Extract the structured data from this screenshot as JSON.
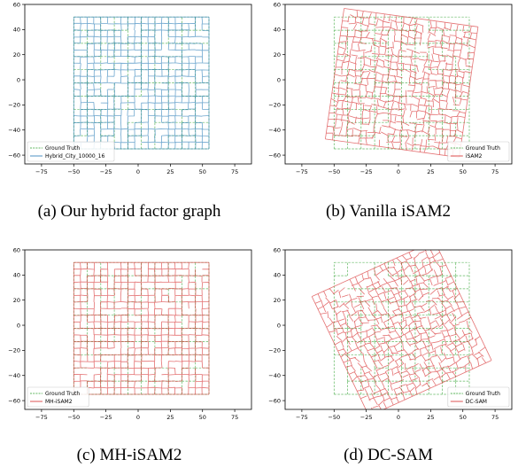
{
  "colors": {
    "ground_truth": "#2ca02c",
    "hybrid": "#1f77b4",
    "estimate": "#d62728"
  },
  "captions": [
    "(a) Our hybrid factor graph",
    "(b) Vanilla iSAM2",
    "(c) MH-iSAM2",
    "(d) DC-SAM"
  ],
  "chart_data": [
    {
      "type": "line",
      "xlim": [
        -88,
        88
      ],
      "ylim": [
        -67,
        60
      ],
      "xticks": [
        -75,
        -50,
        -25,
        0,
        25,
        50,
        75
      ],
      "yticks": [
        -60,
        -40,
        -20,
        0,
        20,
        40,
        60
      ],
      "legend": "bottom-left",
      "series": [
        {
          "name": "Ground Truth",
          "color": "#2ca02c",
          "style": "dashed",
          "grid_extent": [
            -50,
            55,
            -55,
            50
          ]
        },
        {
          "name": "Hybrid_City_10000_16",
          "color": "#1f77b4",
          "style": "solid",
          "grid_extent": [
            -50,
            55,
            -55,
            50
          ]
        }
      ]
    },
    {
      "type": "line",
      "xlim": [
        -88,
        88
      ],
      "ylim": [
        -67,
        60
      ],
      "xticks": [
        -75,
        -50,
        -25,
        0,
        25,
        50,
        75
      ],
      "yticks": [
        -60,
        -40,
        -20,
        0,
        20,
        40,
        60
      ],
      "legend": "bottom-right",
      "series": [
        {
          "name": "Ground Truth",
          "color": "#2ca02c",
          "style": "dashed",
          "grid_extent": [
            -50,
            55,
            -55,
            50
          ]
        },
        {
          "name": "iSAM2",
          "color": "#d62728",
          "style": "solid",
          "grid_extent": [
            -50,
            55,
            -55,
            50
          ],
          "rotation_deg": -8
        }
      ]
    },
    {
      "type": "line",
      "xlim": [
        -88,
        88
      ],
      "ylim": [
        -67,
        60
      ],
      "xticks": [
        -75,
        -50,
        -25,
        0,
        25,
        50,
        75
      ],
      "yticks": [
        -60,
        -40,
        -20,
        0,
        20,
        40,
        60
      ],
      "legend": "bottom-left",
      "series": [
        {
          "name": "Ground Truth",
          "color": "#2ca02c",
          "style": "dashed",
          "grid_extent": [
            -50,
            55,
            -55,
            50
          ]
        },
        {
          "name": "MH-iSAM2",
          "color": "#d62728",
          "style": "solid",
          "grid_extent": [
            -50,
            55,
            -55,
            50
          ]
        }
      ]
    },
    {
      "type": "line",
      "xlim": [
        -88,
        88
      ],
      "ylim": [
        -67,
        60
      ],
      "xticks": [
        -75,
        -50,
        -25,
        0,
        25,
        50,
        75
      ],
      "yticks": [
        -60,
        -40,
        -20,
        0,
        20,
        40,
        60
      ],
      "legend": "bottom-right",
      "series": [
        {
          "name": "Ground Truth",
          "color": "#2ca02c",
          "style": "dashed",
          "grid_extent": [
            -50,
            55,
            -55,
            50
          ]
        },
        {
          "name": "DC-SAM",
          "color": "#d62728",
          "style": "solid",
          "grid_extent": [
            -50,
            55,
            -55,
            50
          ],
          "rotation_deg": 25
        }
      ]
    }
  ]
}
